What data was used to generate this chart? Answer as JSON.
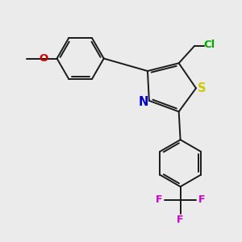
{
  "bg_color": "#ebebeb",
  "bond_color": "#1a1a1a",
  "S_color": "#cccc00",
  "N_color": "#0000cc",
  "O_color": "#cc0000",
  "Cl_color": "#00aa00",
  "F_color": "#cc00cc",
  "font_size": 8.5,
  "lw": 1.4,
  "xlim": [
    -3.8,
    3.8
  ],
  "ylim": [
    -4.2,
    3.2
  ]
}
